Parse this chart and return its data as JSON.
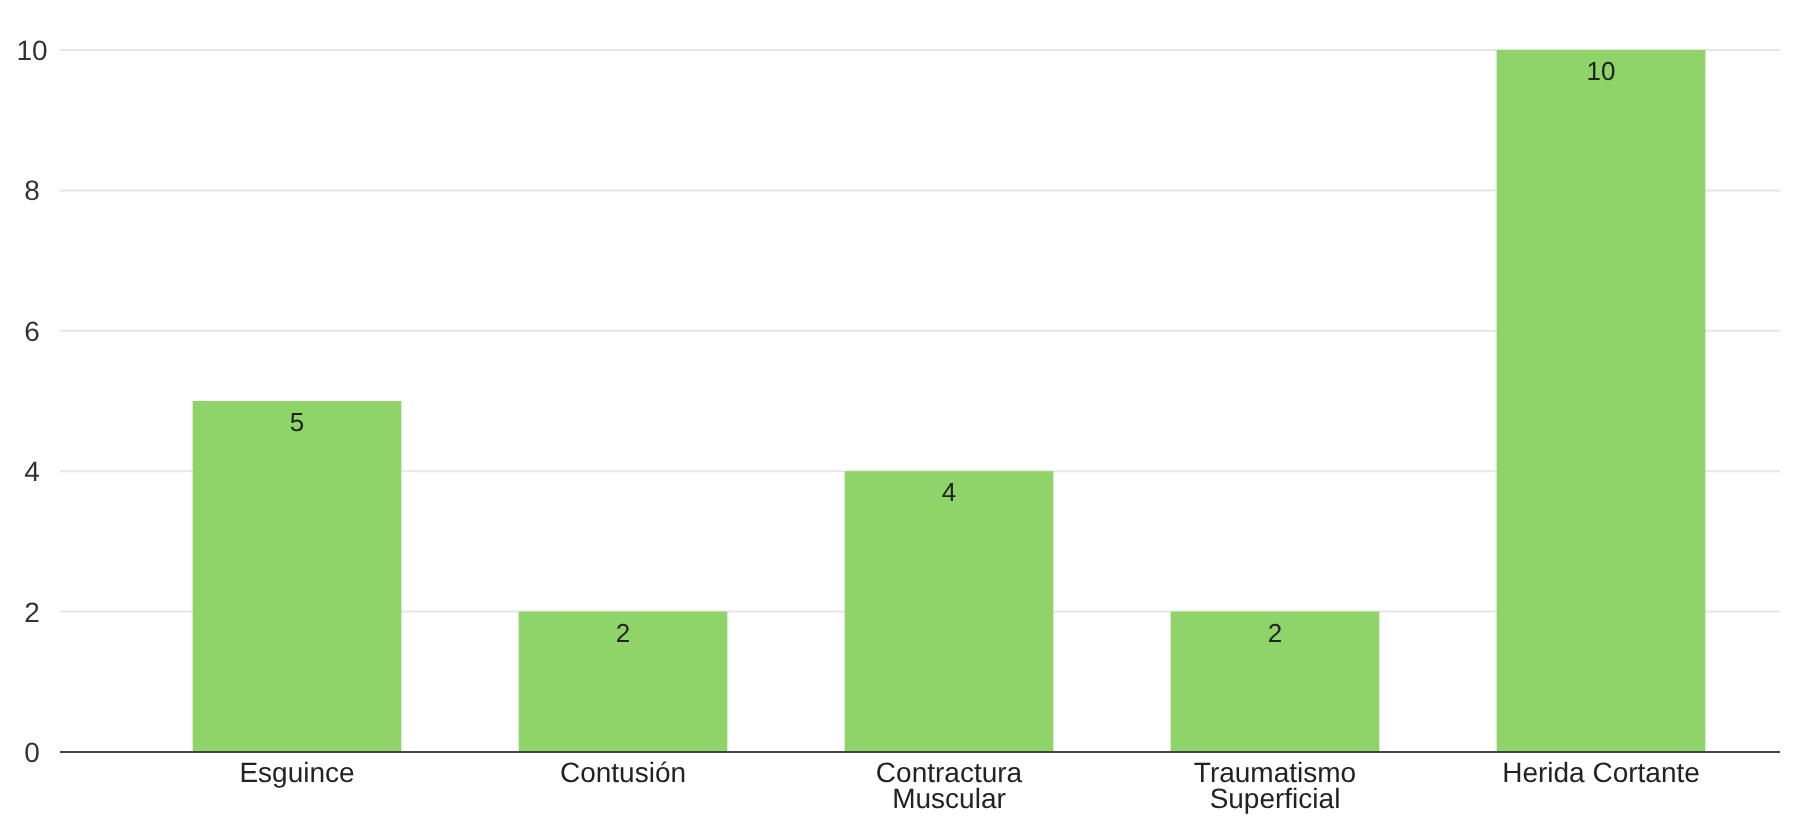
{
  "chart_data": {
    "type": "bar",
    "categories": [
      "Esguince",
      "Contusión",
      "Contractura Muscular",
      "Traumatismo Superficial",
      "Herida Cortante"
    ],
    "values": [
      5,
      2,
      4,
      2,
      10
    ],
    "color": "#8fd468",
    "ylim": [
      0,
      10
    ],
    "yticks": [
      0,
      2,
      4,
      6,
      8,
      10
    ],
    "grid": "y",
    "data_labels": true
  }
}
